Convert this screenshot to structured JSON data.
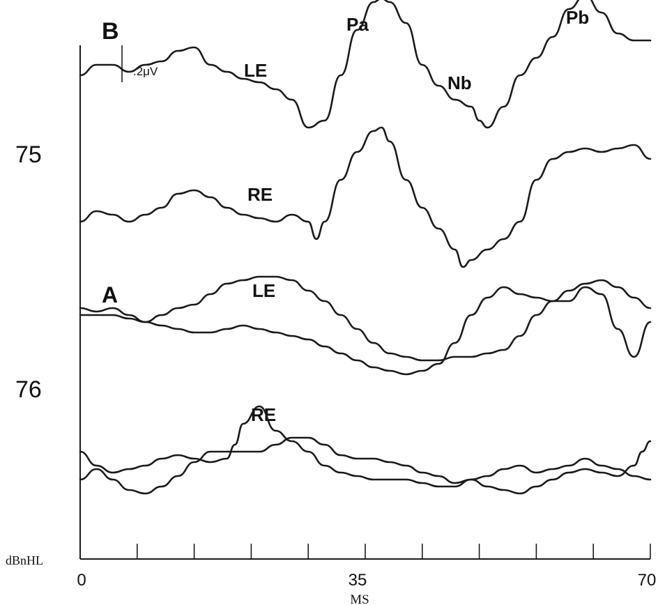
{
  "chart_data": {
    "type": "line",
    "xlabel": "MS",
    "ylabel": "dBnHL",
    "xlim": [
      0,
      70
    ],
    "x_ticks": [
      0,
      35,
      70
    ],
    "minor_tick_step": 7,
    "grid": false,
    "panel_labels": {
      "b": "B",
      "a": "A"
    },
    "scale_bar_label": ".2μV",
    "level_labels": [
      "75",
      "76"
    ],
    "peak_labels": [
      "Pa",
      "Nb",
      "Pb"
    ],
    "series": [
      {
        "panel": "B",
        "level": "75",
        "name": "LE",
        "x": [
          0,
          2,
          4,
          6,
          8,
          10,
          12,
          14,
          16,
          18,
          20,
          22,
          24,
          26,
          28,
          30,
          32,
          34,
          36,
          37,
          38,
          40,
          42,
          44,
          46,
          48,
          49,
          50,
          52,
          54,
          56,
          58,
          60,
          62,
          64,
          66,
          68,
          70
        ],
        "y": [
          0.05,
          0.08,
          0.08,
          0.06,
          0.08,
          0.09,
          0.12,
          0.13,
          0.08,
          0.06,
          0.04,
          0.03,
          0.01,
          -0.02,
          -0.1,
          -0.08,
          0.05,
          0.18,
          0.26,
          0.27,
          0.26,
          0.2,
          0.08,
          0.02,
          -0.02,
          -0.04,
          -0.08,
          -0.1,
          -0.04,
          0.05,
          0.1,
          0.16,
          0.24,
          0.28,
          0.23,
          0.17,
          0.15,
          0.15
        ]
      },
      {
        "panel": "B",
        "level": "75",
        "name": "RE",
        "x": [
          0,
          2,
          4,
          6,
          8,
          10,
          12,
          14,
          16,
          18,
          20,
          22,
          24,
          26,
          28,
          29,
          30,
          32,
          34,
          36,
          37,
          38,
          40,
          42,
          44,
          46,
          47,
          48,
          50,
          52,
          54,
          56,
          58,
          60,
          62,
          64,
          66,
          68,
          70
        ],
        "y": [
          0.0,
          0.03,
          0.02,
          0.0,
          0.02,
          0.04,
          0.08,
          0.09,
          0.07,
          0.04,
          0.02,
          0.01,
          0.0,
          0.02,
          0.0,
          -0.05,
          0.0,
          0.12,
          0.2,
          0.26,
          0.27,
          0.23,
          0.12,
          0.04,
          -0.02,
          -0.08,
          -0.13,
          -0.11,
          -0.08,
          -0.05,
          0.0,
          0.12,
          0.18,
          0.2,
          0.21,
          0.2,
          0.21,
          0.22,
          0.18
        ]
      },
      {
        "panel": "A",
        "level": "75",
        "name": "LE",
        "x": [
          0,
          2,
          4,
          6,
          8,
          10,
          12,
          14,
          16,
          18,
          20,
          22,
          24,
          26,
          28,
          30,
          32,
          34,
          36,
          38,
          40,
          42,
          44,
          46,
          48,
          50,
          52,
          54,
          56,
          58,
          60,
          62,
          64,
          66,
          68,
          70
        ],
        "y": [
          0.0,
          0.0,
          0.0,
          -0.01,
          -0.02,
          0.0,
          0.02,
          0.03,
          0.06,
          0.09,
          0.1,
          0.11,
          0.11,
          0.1,
          0.07,
          0.04,
          0.0,
          -0.04,
          -0.08,
          -0.11,
          -0.12,
          -0.13,
          -0.13,
          -0.12,
          -0.12,
          -0.11,
          -0.1,
          -0.06,
          0.0,
          0.04,
          0.07,
          0.09,
          0.1,
          0.08,
          0.05,
          0.02
        ]
      },
      {
        "panel": "A",
        "level": "75",
        "name": "",
        "x": [
          0,
          2,
          4,
          6,
          8,
          10,
          12,
          14,
          16,
          18,
          20,
          22,
          24,
          26,
          28,
          30,
          32,
          34,
          36,
          38,
          40,
          42,
          44,
          46,
          48,
          50,
          52,
          54,
          56,
          58,
          60,
          62,
          64,
          66,
          68,
          70
        ],
        "y": [
          0.02,
          0.01,
          0.02,
          0.0,
          -0.02,
          -0.03,
          -0.04,
          -0.05,
          -0.05,
          -0.04,
          -0.03,
          -0.04,
          -0.05,
          -0.06,
          -0.07,
          -0.09,
          -0.11,
          -0.13,
          -0.15,
          -0.16,
          -0.17,
          -0.16,
          -0.14,
          -0.08,
          0.0,
          0.05,
          0.08,
          0.06,
          0.05,
          0.04,
          0.04,
          0.08,
          0.06,
          -0.04,
          -0.12,
          -0.02
        ]
      },
      {
        "panel": "A",
        "level": "76",
        "name": "RE",
        "x": [
          0,
          2,
          4,
          6,
          8,
          10,
          12,
          14,
          16,
          18,
          19,
          20,
          22,
          24,
          26,
          28,
          30,
          32,
          34,
          36,
          38,
          40,
          42,
          44,
          46,
          48,
          50,
          52,
          54,
          56,
          58,
          60,
          62,
          64,
          66,
          68,
          69,
          70
        ],
        "y": [
          0.0,
          -0.04,
          -0.06,
          -0.05,
          -0.04,
          -0.02,
          -0.01,
          -0.02,
          -0.03,
          -0.02,
          0.02,
          0.08,
          0.13,
          0.06,
          0.03,
          0.0,
          -0.04,
          -0.06,
          -0.07,
          -0.08,
          -0.08,
          -0.08,
          -0.09,
          -0.1,
          -0.1,
          -0.08,
          -0.1,
          -0.11,
          -0.12,
          -0.1,
          -0.08,
          -0.06,
          -0.05,
          -0.06,
          -0.07,
          -0.04,
          0.0,
          0.03
        ]
      },
      {
        "panel": "A",
        "level": "76",
        "name": "",
        "x": [
          0,
          2,
          4,
          6,
          8,
          10,
          12,
          14,
          16,
          18,
          20,
          22,
          24,
          26,
          28,
          30,
          32,
          34,
          36,
          38,
          40,
          42,
          44,
          46,
          48,
          50,
          52,
          54,
          56,
          58,
          60,
          62,
          64,
          66,
          68,
          70
        ],
        "y": [
          -0.08,
          -0.05,
          -0.08,
          -0.11,
          -0.12,
          -0.1,
          -0.07,
          -0.03,
          0.0,
          0.0,
          0.0,
          0.0,
          0.02,
          0.04,
          0.04,
          0.02,
          -0.01,
          -0.02,
          -0.02,
          -0.03,
          -0.04,
          -0.06,
          -0.07,
          -0.09,
          -0.08,
          -0.07,
          -0.05,
          -0.04,
          -0.06,
          -0.05,
          -0.04,
          -0.02,
          -0.04,
          -0.05,
          -0.07,
          -0.08
        ]
      }
    ]
  }
}
